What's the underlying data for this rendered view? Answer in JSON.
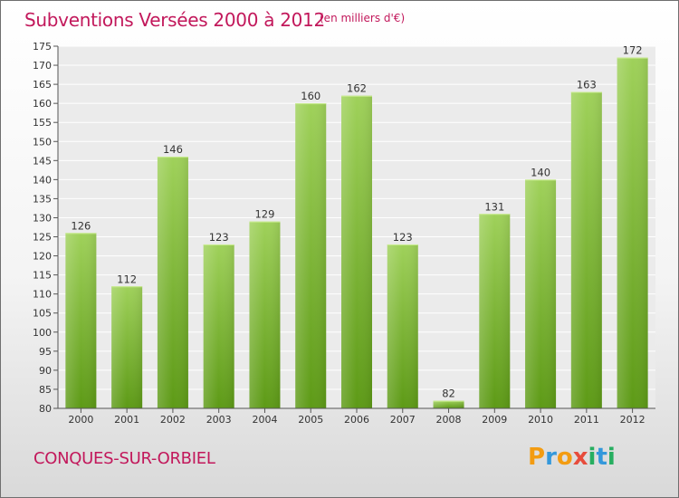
{
  "title": "Subventions Versées 2000 à 2012",
  "subtitle": "(en milliers d'€)",
  "commune": "CONQUES-SUR-ORBIEL",
  "logo": {
    "letters": [
      "P",
      "r",
      "o",
      "x",
      "i",
      "t",
      "i"
    ],
    "colors": [
      "#f39c12",
      "#3498db",
      "#f39c12",
      "#e74c3c",
      "#27ae60",
      "#3498db",
      "#27ae60"
    ]
  },
  "colors": {
    "bar_top": "#9fd15a",
    "bar_bottom": "#5d9a16",
    "accent": "#c2185b"
  },
  "chart_data": {
    "type": "bar",
    "title": "Subventions Versées 2000 à 2012",
    "subtitle": "(en milliers d'€)",
    "categories": [
      "2000",
      "2001",
      "2002",
      "2003",
      "2004",
      "2005",
      "2006",
      "2007",
      "2008",
      "2009",
      "2010",
      "2011",
      "2012"
    ],
    "values": [
      126,
      112,
      146,
      123,
      129,
      160,
      162,
      123,
      82,
      131,
      140,
      163,
      172
    ],
    "ylim": [
      80,
      175
    ],
    "ytick_step": 5,
    "grid": true,
    "xlabel": "",
    "ylabel": ""
  }
}
